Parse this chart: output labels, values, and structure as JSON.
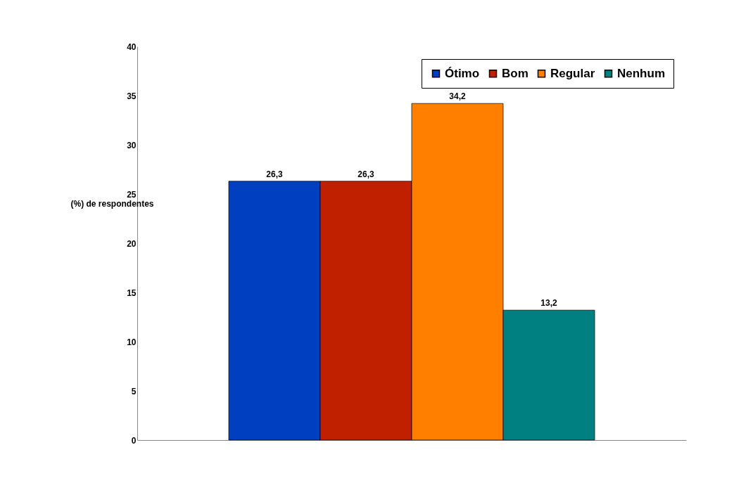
{
  "chart_data": {
    "type": "bar",
    "ylabel": "(%) de respondentes",
    "categories": [
      null
    ],
    "series": [
      {
        "name": "Ótimo",
        "color": "#0040c0",
        "values": [
          26.3
        ],
        "value_labels": [
          "26,3"
        ]
      },
      {
        "name": "Bom",
        "color": "#c02000",
        "values": [
          26.3
        ],
        "value_labels": [
          "26,3"
        ]
      },
      {
        "name": "Regular",
        "color": "#ff8000",
        "values": [
          34.2
        ],
        "value_labels": [
          "34,2"
        ]
      },
      {
        "name": "Nenhum",
        "color": "#008080",
        "values": [
          13.2
        ],
        "value_labels": [
          "13,2"
        ]
      }
    ],
    "ylim": [
      0,
      40
    ],
    "yticks": [
      0,
      5,
      10,
      15,
      20,
      25,
      30,
      35,
      40
    ],
    "grid": false,
    "legend": "top right",
    "tick_labels": "y"
  }
}
